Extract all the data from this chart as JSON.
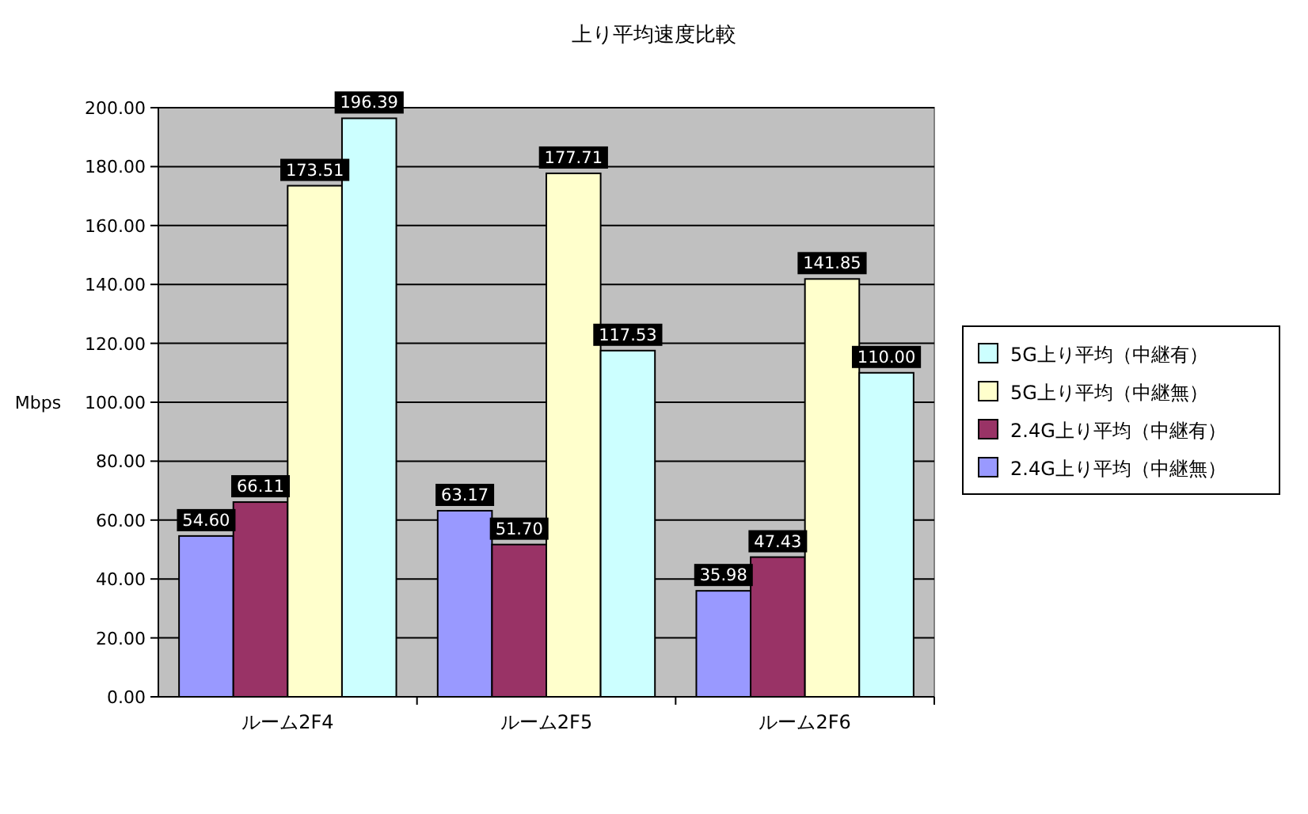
{
  "chart_data": {
    "type": "bar",
    "title": "上り平均速度比較",
    "ylabel": "Mbps",
    "categories": [
      "ルーム2F4",
      "ルーム2F5",
      "ルーム2F6"
    ],
    "series": [
      {
        "name": "2.4G上り平均（中継無）",
        "color": "#9999ff",
        "values": [
          54.6,
          63.17,
          35.98
        ],
        "value_labels": [
          "54.60",
          "63.17",
          "35.98"
        ]
      },
      {
        "name": "2.4G上り平均（中継有）",
        "color": "#993366",
        "values": [
          66.11,
          51.7,
          47.43
        ],
        "value_labels": [
          "66.11",
          "51.70",
          "47.43"
        ]
      },
      {
        "name": "5G上り平均（中継無）",
        "color": "#ffffcc",
        "values": [
          173.51,
          177.71,
          141.85
        ],
        "value_labels": [
          "173.51",
          "177.71",
          "141.85"
        ]
      },
      {
        "name": "5G上り平均（中継有）",
        "color": "#ccffff",
        "values": [
          196.39,
          117.53,
          110.0
        ],
        "value_labels": [
          "196.39",
          "117.53",
          "110.00"
        ]
      }
    ],
    "ylim": [
      0,
      200
    ],
    "yticks": [
      {
        "value": 0,
        "label": "0.00"
      },
      {
        "value": 20,
        "label": "20.00"
      },
      {
        "value": 40,
        "label": "40.00"
      },
      {
        "value": 60,
        "label": "60.00"
      },
      {
        "value": 80,
        "label": "80.00"
      },
      {
        "value": 100,
        "label": "100.00"
      },
      {
        "value": 120,
        "label": "120.00"
      },
      {
        "value": 140,
        "label": "140.00"
      },
      {
        "value": 160,
        "label": "160.00"
      },
      {
        "value": 180,
        "label": "180.00"
      },
      {
        "value": 200,
        "label": "200.00"
      }
    ],
    "grid": "y",
    "legend": "right"
  }
}
